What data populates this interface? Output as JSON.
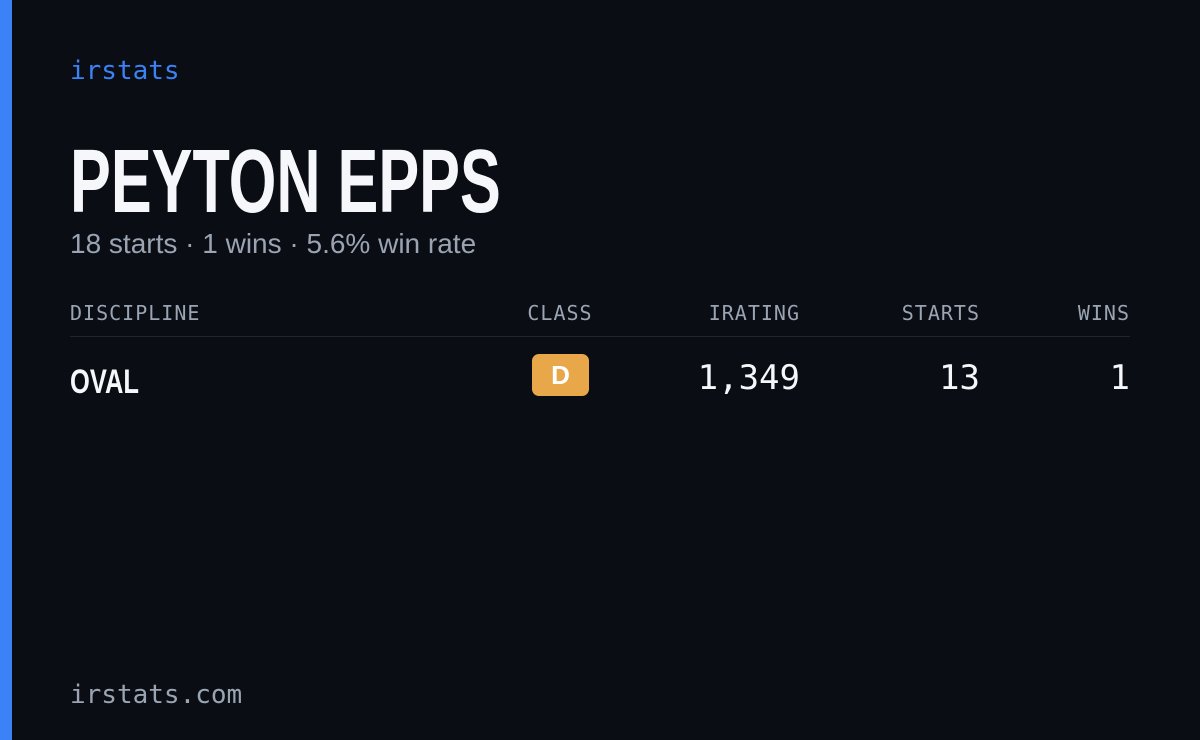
{
  "header": {
    "brand": "irstats",
    "name": "PEYTON EPPS",
    "summary": "18 starts · 1 wins · 5.6% win rate"
  },
  "table": {
    "columns": [
      "DISCIPLINE",
      "CLASS",
      "IRATING",
      "STARTS",
      "WINS"
    ],
    "rows": [
      [
        "OVAL",
        "D",
        "1,349",
        "13",
        "1"
      ]
    ]
  },
  "footer": {
    "site": "irstats.com"
  }
}
